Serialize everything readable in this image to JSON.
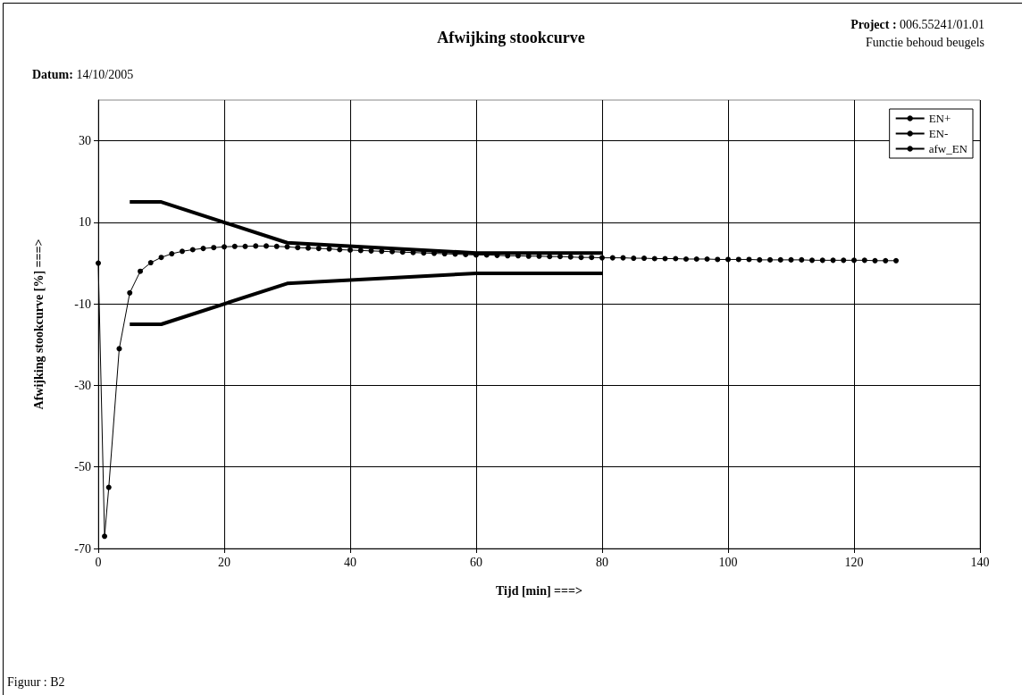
{
  "chart_data": {
    "type": "line",
    "title": "Afwijking stookcurve",
    "xlabel": "Tijd [min] ===>",
    "ylabel": "Afwijking stookcurve [%] ===>",
    "annotations": [
      "Datum: 14/10/2005",
      "Project : 006.55241/01.01",
      "Functie behoud beugels",
      "Figuur : B2"
    ],
    "xlim": [
      0,
      140
    ],
    "xticks": [
      0,
      20,
      40,
      60,
      80,
      100,
      120,
      140
    ],
    "ylim": [
      -70,
      40
    ],
    "yticks": [
      -70,
      -50,
      -30,
      -10,
      10,
      30
    ],
    "grid": true,
    "legend": "top right",
    "series": [
      {
        "name": "EN+",
        "color": "#000000",
        "marker": "none",
        "x": [
          5,
          10,
          30,
          60,
          80
        ],
        "values": [
          15,
          15,
          5,
          2.5,
          2.5
        ]
      },
      {
        "name": "EN-",
        "color": "#000000",
        "marker": "none",
        "x": [
          5,
          10,
          30,
          60,
          80
        ],
        "values": [
          -15,
          -15,
          -5,
          -2.5,
          -2.5
        ]
      },
      {
        "name": "afw_EN",
        "color": "#000000",
        "marker": "circle",
        "x": [
          0,
          1,
          1.67,
          3.33,
          5,
          6.67,
          8.33,
          10,
          11.67,
          13.33,
          15,
          16.67,
          18.33,
          20,
          21.67,
          23.33,
          25,
          26.67,
          28.33,
          30,
          31.67,
          33.33,
          35,
          36.67,
          38.33,
          40,
          41.67,
          43.33,
          45,
          46.67,
          48.33,
          50,
          51.67,
          53.33,
          55,
          56.67,
          58.33,
          60,
          61.67,
          63.33,
          65,
          66.67,
          68.33,
          70,
          71.67,
          73.33,
          75,
          76.67,
          78.33,
          80,
          81.67,
          83.33,
          85,
          86.67,
          88.33,
          90,
          91.67,
          93.33,
          95,
          96.67,
          98.33,
          100,
          101.67,
          103.33,
          105,
          106.67,
          108.33,
          110,
          111.67,
          113.33,
          115,
          116.67,
          118.33,
          120,
          121.67,
          123.33,
          125,
          126.67
        ],
        "values": [
          0,
          -67,
          -55,
          -21,
          -7.3,
          -2,
          0.1,
          1.4,
          2.3,
          2.9,
          3.3,
          3.6,
          3.8,
          4.0,
          4.1,
          4.1,
          4.2,
          4.2,
          4.1,
          4.0,
          3.8,
          3.7,
          3.6,
          3.5,
          3.3,
          3.2,
          3.1,
          3.0,
          2.9,
          2.8,
          2.7,
          2.6,
          2.5,
          2.4,
          2.3,
          2.2,
          2.1,
          2.0,
          2.0,
          1.9,
          1.8,
          1.8,
          1.7,
          1.7,
          1.6,
          1.6,
          1.5,
          1.4,
          1.4,
          1.3,
          1.3,
          1.3,
          1.2,
          1.2,
          1.1,
          1.1,
          1.1,
          1.0,
          1.0,
          1.0,
          0.9,
          0.9,
          0.9,
          0.9,
          0.8,
          0.8,
          0.8,
          0.8,
          0.8,
          0.7,
          0.7,
          0.7,
          0.7,
          0.7,
          0.7,
          0.6,
          0.6,
          0.6
        ]
      }
    ]
  }
}
